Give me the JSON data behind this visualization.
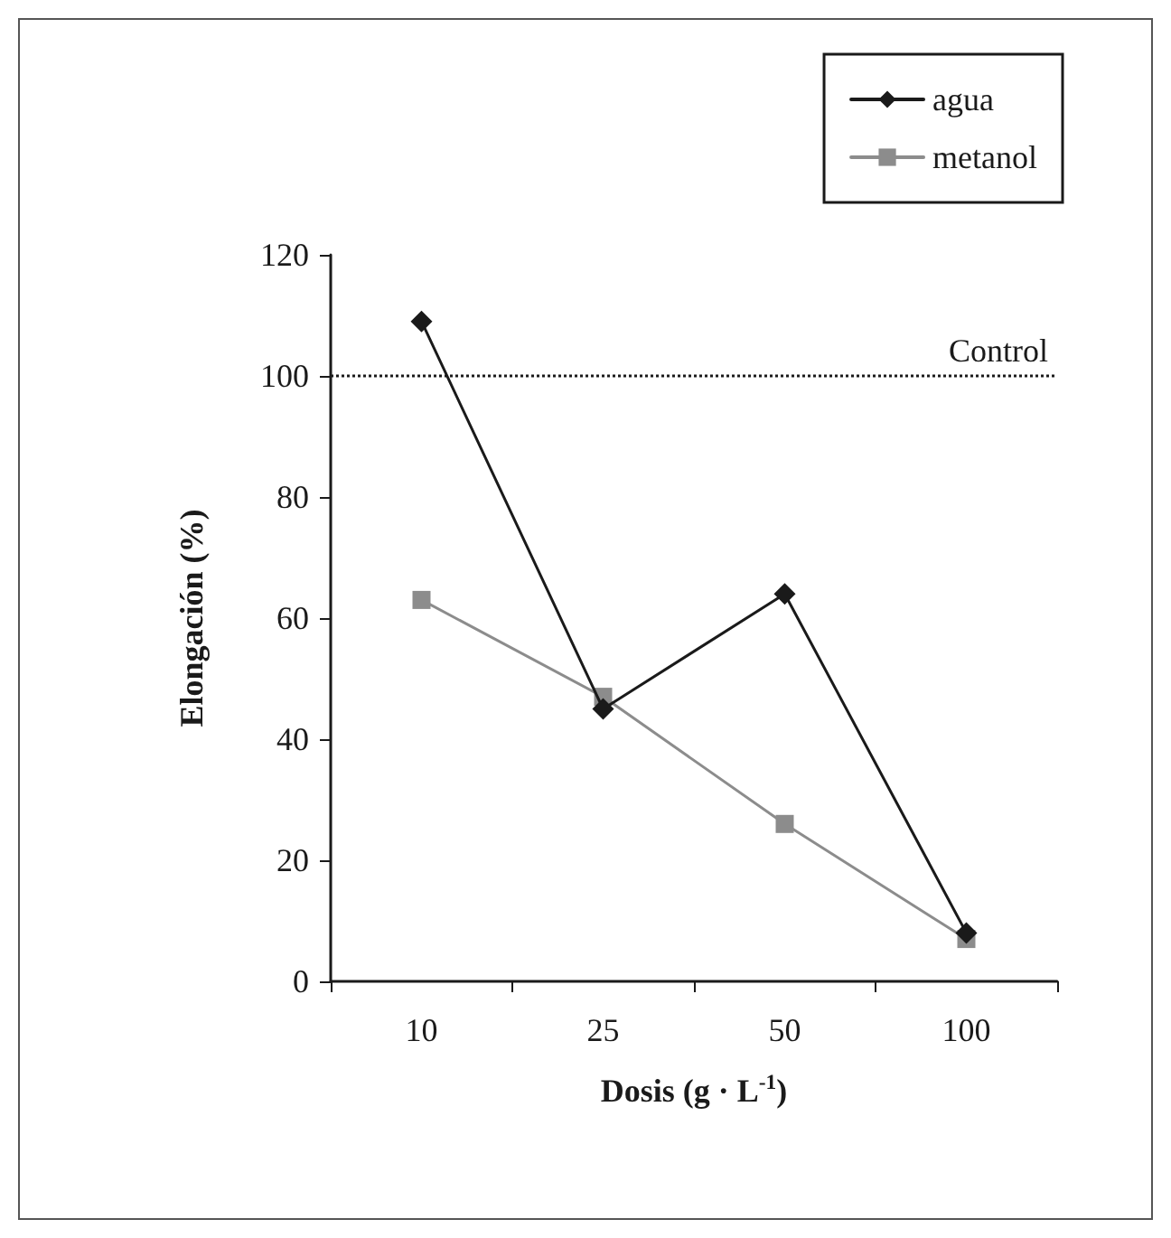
{
  "chart_data": {
    "type": "line",
    "xlabel": "Dosis (g · L$^{-1}$)",
    "ylabel": "Elongación (%)",
    "categories": [
      "10",
      "25",
      "50",
      "100"
    ],
    "series": [
      {
        "name": "agua",
        "color": "#1a1a1a",
        "marker": "diamond",
        "values": [
          109,
          45,
          64,
          8
        ]
      },
      {
        "name": "metanol",
        "color": "#8c8c8c",
        "marker": "square",
        "values": [
          63,
          47,
          26,
          7
        ]
      }
    ],
    "ylim": [
      0,
      120
    ],
    "yticks": [
      0,
      20,
      40,
      60,
      80,
      100,
      120
    ],
    "grid": false,
    "legend": "top right",
    "line_style": "solid",
    "ref_lines": [
      {
        "axis": "y",
        "value": 100,
        "label": "Control",
        "color": "#1a1a1a",
        "line_style": "dotted"
      }
    ]
  }
}
